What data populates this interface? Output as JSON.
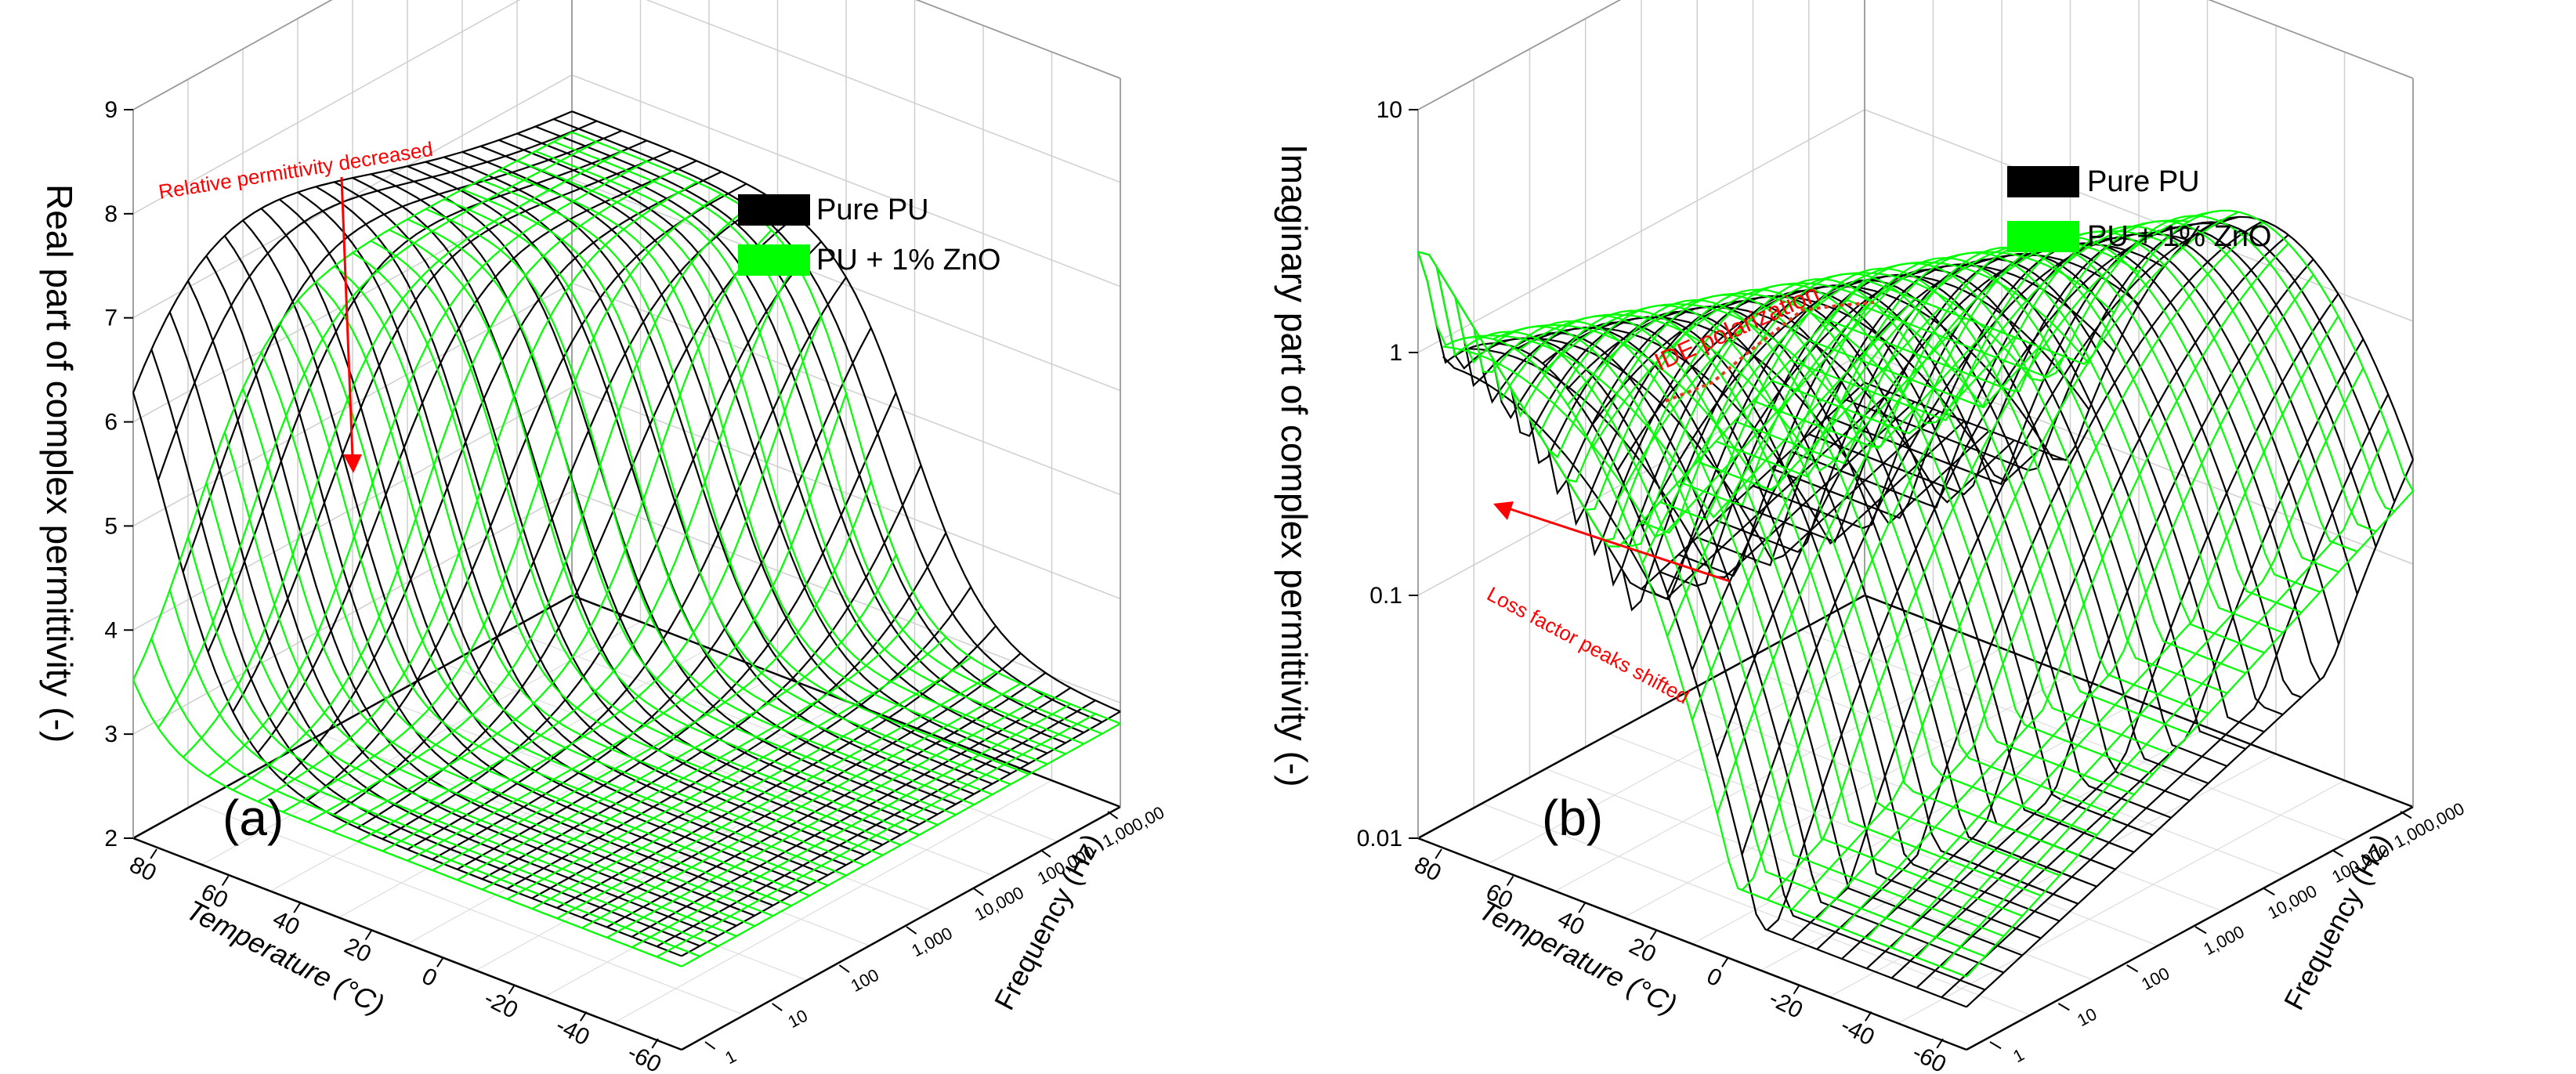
{
  "chart_data": [
    {
      "panel": "(a)",
      "type": "3d-surface",
      "zlabel": "Real part of complex permittivity (-)",
      "xlabel": "Temperature (°C)",
      "ylabel": "Frequency (Hz)",
      "zlim": [
        2,
        9
      ],
      "z_ticks": [
        "2",
        "3",
        "4",
        "5",
        "6",
        "7",
        "8",
        "9"
      ],
      "temperature_ticks": [
        "80",
        "60",
        "40",
        "20",
        "0",
        "-20",
        "-40",
        "-60"
      ],
      "frequency_ticks": [
        "1",
        "10",
        "100",
        "1,000",
        "10,000",
        "100,000",
        "1,000,00"
      ],
      "legend": [
        "Pure PU",
        "PU + 1% ZnO"
      ],
      "annotation": "Relative permittivity decreased",
      "series": [
        {
          "name": "Pure PU",
          "color": "#000000",
          "peak_value": 7.6,
          "low_value": 2.9
        },
        {
          "name": "PU + 1% ZnO",
          "color": "#00ff00",
          "peak_value": 6.6,
          "low_value": 2.8
        }
      ]
    },
    {
      "panel": "(b)",
      "type": "3d-surface",
      "zlabel": "Imaginary part of complex permittivity (-)",
      "xlabel": "Temperature (°C)",
      "ylabel": "Frequency (Hz)",
      "zscale": "log",
      "zlim": [
        0.01,
        10
      ],
      "z_ticks": [
        "10",
        "1",
        "0.1",
        "0.01"
      ],
      "temperature_ticks": [
        "80",
        "60",
        "40",
        "20",
        "0",
        "-20",
        "-40",
        "-60"
      ],
      "frequency_ticks": [
        "1",
        "10",
        "100",
        "1,000",
        "10,000",
        "100,000",
        "1,000,000"
      ],
      "legend": [
        "Pure PU",
        "PU + 1% ZnO"
      ],
      "annotations": [
        "IDE polarization",
        "Loss factor peaks shifted"
      ],
      "series": [
        {
          "name": "Pure PU",
          "color": "#000000",
          "peak_value": 1.5,
          "min_value": 0.015
        },
        {
          "name": "PU + 1% ZnO",
          "color": "#00ff00",
          "peak_value": 1.5,
          "min_value": 0.02
        }
      ]
    }
  ]
}
